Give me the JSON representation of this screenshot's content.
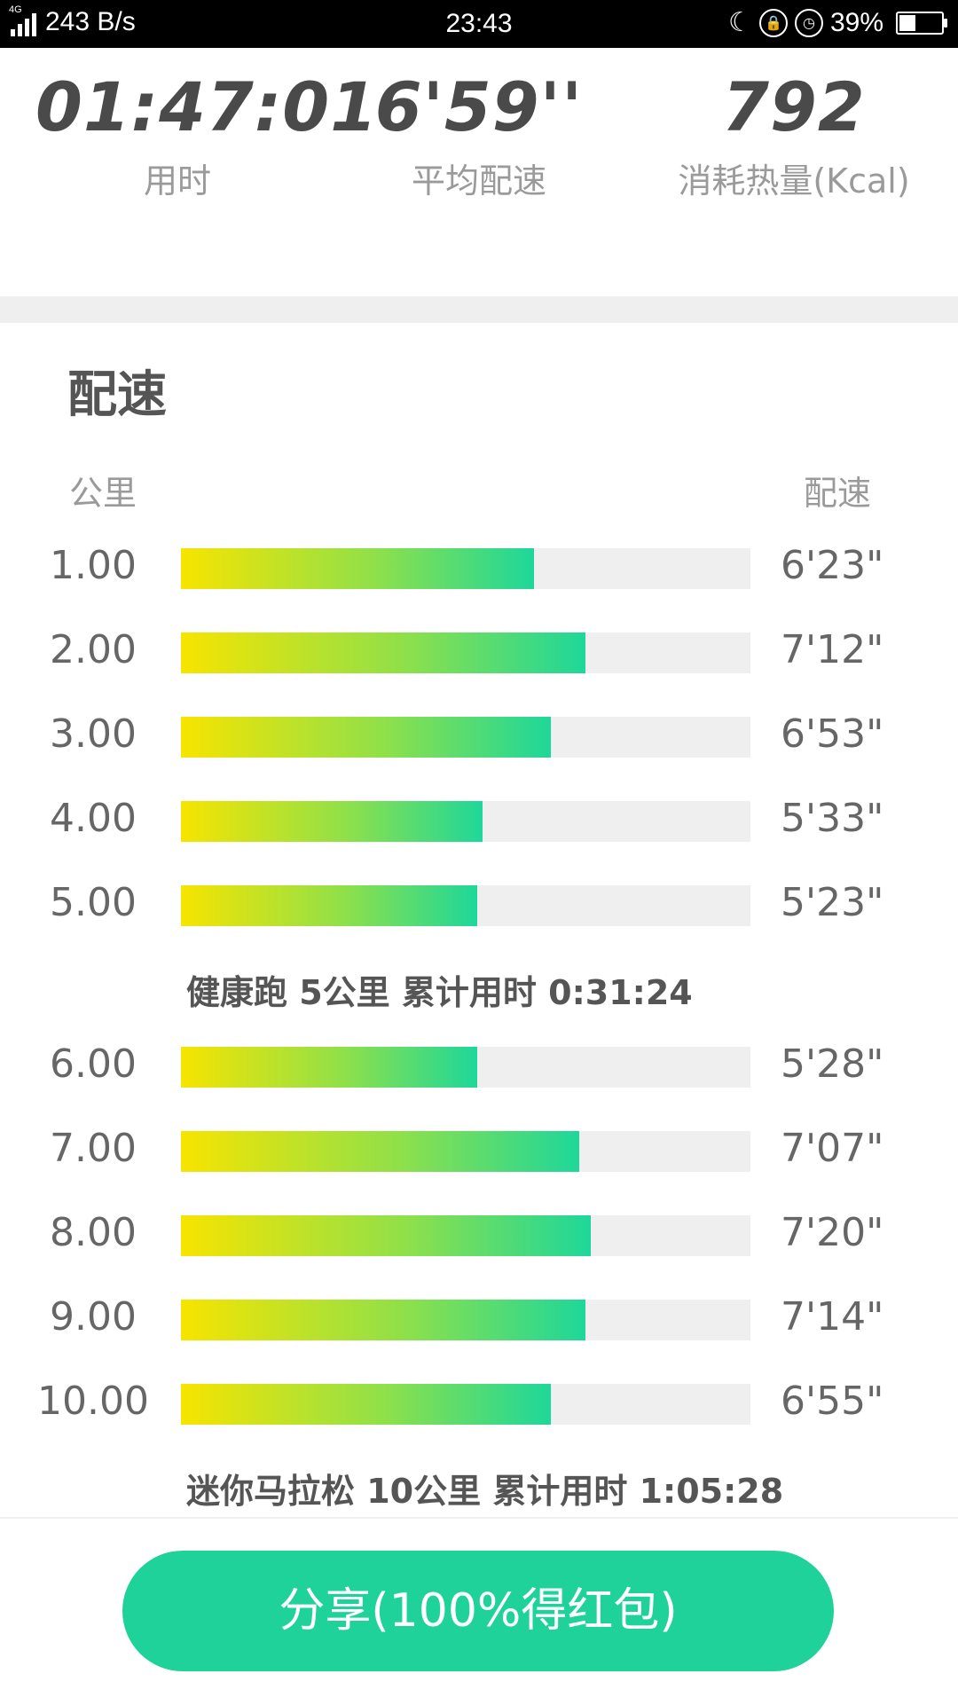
{
  "status_bar": {
    "network_tag": "4G",
    "speed": "243 B/s",
    "time": "23:43",
    "battery": "39%",
    "battery_level": 0.39
  },
  "summary": {
    "duration": {
      "value": "01:47:01",
      "label": "用时"
    },
    "avg_pace": {
      "value": "6'59''",
      "label": "平均配速"
    },
    "calories": {
      "value": "792",
      "label": "消耗热量(Kcal)"
    }
  },
  "pace_section": {
    "title": "配速",
    "col_km": "公里",
    "col_pace": "配速",
    "rows": [
      {
        "km": "1.00",
        "pace": "6'23\"",
        "fraction": 0.62
      },
      {
        "km": "2.00",
        "pace": "7'12\"",
        "fraction": 0.71
      },
      {
        "km": "3.00",
        "pace": "6'53\"",
        "fraction": 0.65
      },
      {
        "km": "4.00",
        "pace": "5'33\"",
        "fraction": 0.53
      },
      {
        "km": "5.00",
        "pace": "5'23\"",
        "fraction": 0.52
      },
      {
        "km": "6.00",
        "pace": "5'28\"",
        "fraction": 0.52
      },
      {
        "km": "7.00",
        "pace": "7'07\"",
        "fraction": 0.7
      },
      {
        "km": "8.00",
        "pace": "7'20\"",
        "fraction": 0.72
      },
      {
        "km": "9.00",
        "pace": "7'14\"",
        "fraction": 0.71
      },
      {
        "km": "10.00",
        "pace": "6'55\"",
        "fraction": 0.65
      }
    ],
    "milestone_5k": "健康跑 5公里 累计用时 0:31:24",
    "milestone_10k": "迷你马拉松 10公里 累计用时 1:05:28"
  },
  "share_button": "分享(100%得红包)",
  "colors": {
    "accent": "#1ed29a",
    "bar_start": "#f7e400",
    "bar_end": "#1ed79a",
    "track": "#efefef"
  }
}
